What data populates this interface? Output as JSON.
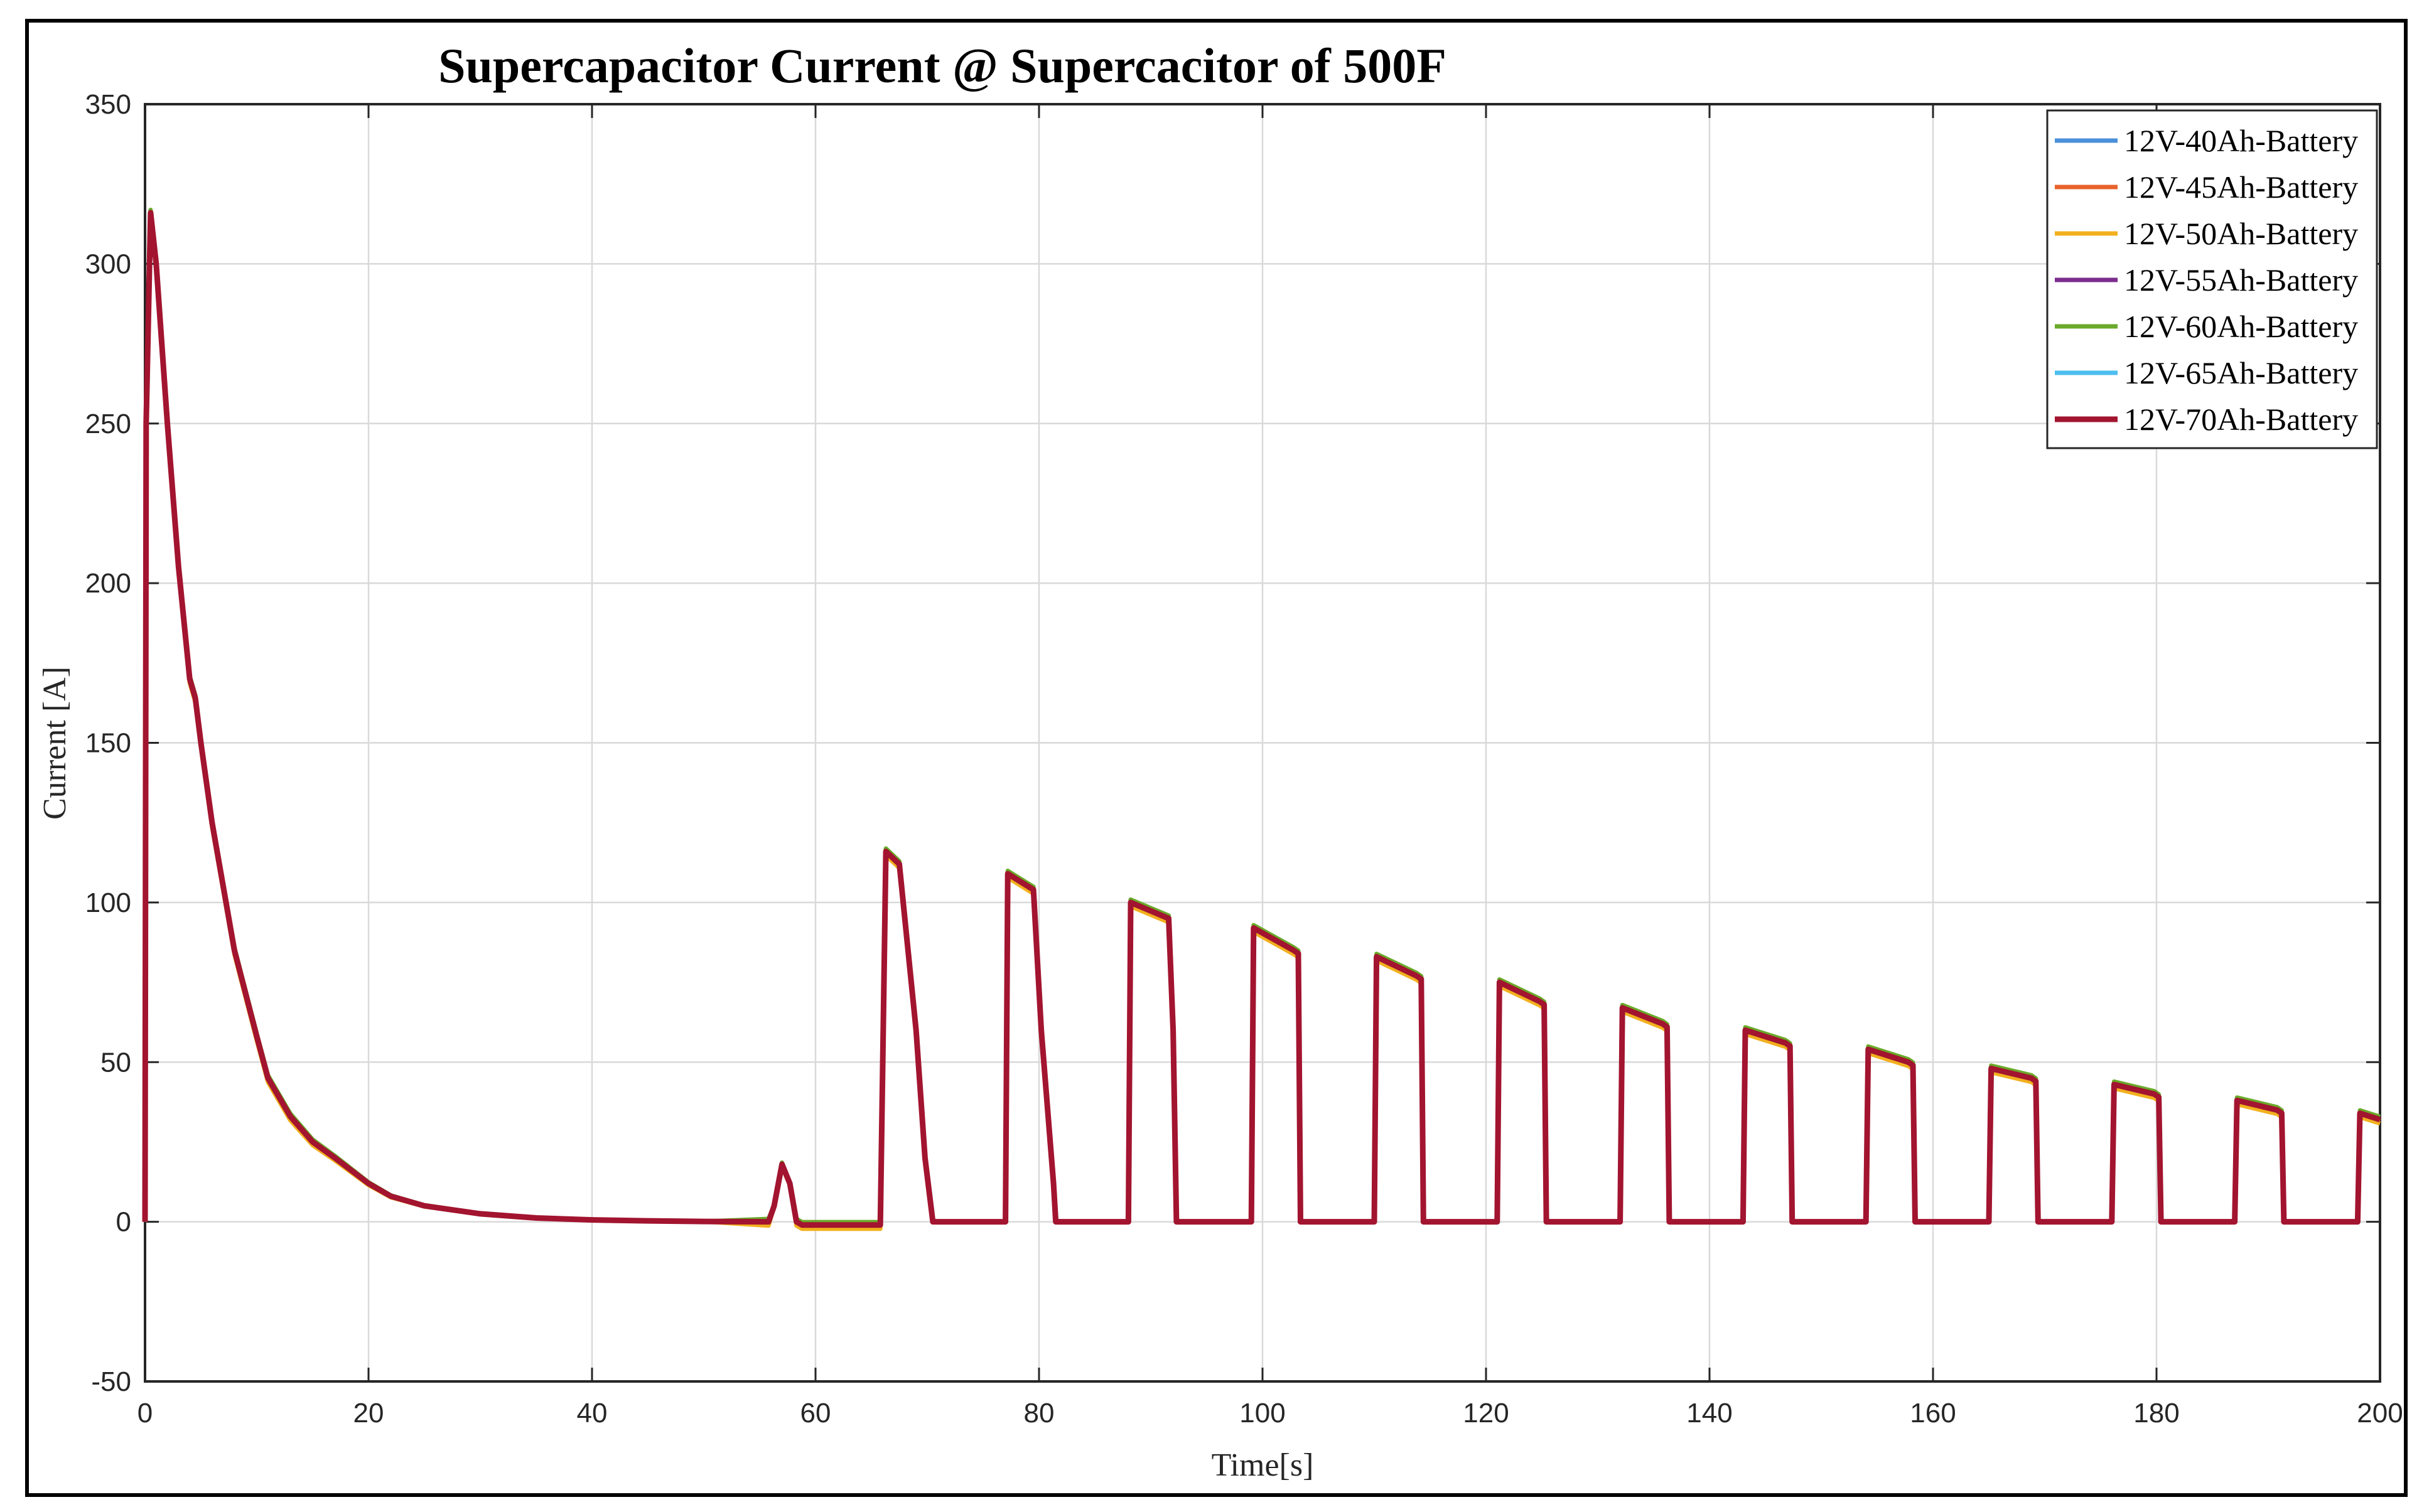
{
  "chart_data": {
    "type": "line",
    "title": "Supercapacitor Current @ Supercacitor of 500F",
    "xlabel": "Time[s]",
    "ylabel": "Current [A]",
    "xlim": [
      0,
      200
    ],
    "ylim": [
      -50,
      350
    ],
    "xticks": [
      0,
      20,
      40,
      60,
      80,
      100,
      120,
      140,
      160,
      180,
      200
    ],
    "yticks": [
      -50,
      0,
      50,
      100,
      150,
      200,
      250,
      300,
      350
    ],
    "grid": true,
    "legend_position": "top-right",
    "series": [
      {
        "name": "12V-40Ah-Battery",
        "color": "#4A90D9",
        "offset": 0.6
      },
      {
        "name": "12V-45Ah-Battery",
        "color": "#E8622A",
        "offset": -0.4
      },
      {
        "name": "12V-50Ah-Battery",
        "color": "#F2B01E",
        "offset": -1.2
      },
      {
        "name": "12V-55Ah-Battery",
        "color": "#7B2D8E",
        "offset": 0.3
      },
      {
        "name": "12V-60Ah-Battery",
        "color": "#6AAA2A",
        "offset": 0.9
      },
      {
        "name": "12V-65Ah-Battery",
        "color": "#4DBEEE",
        "offset": 0.1
      },
      {
        "name": "12V-70Ah-Battery",
        "color": "#A2142F",
        "offset": 0
      }
    ],
    "base_curve": {
      "x": [
        0,
        0.1,
        0.5,
        1,
        2,
        3,
        4,
        4.5,
        5,
        6,
        8,
        10,
        11,
        13,
        15,
        17,
        20,
        22,
        25,
        30,
        35,
        40,
        45,
        50,
        55.8,
        56.3,
        57,
        57.7,
        58.3,
        58.8,
        65.8,
        66.3,
        67.5,
        69,
        69.8,
        70.5,
        77,
        77.2,
        79.5,
        80.2,
        81.3,
        81.5,
        88,
        88.2,
        91.6,
        92,
        92.3,
        99,
        99.2,
        102.8,
        103.2,
        103.4,
        110,
        110.2,
        113.8,
        114.2,
        114.4,
        121,
        121.2,
        124.8,
        125.2,
        125.4,
        132,
        132.2,
        135.8,
        136.2,
        136.4,
        143,
        143.2,
        146.8,
        147.2,
        147.4,
        154,
        154.2,
        157.8,
        158.2,
        158.4,
        165,
        165.2,
        168.8,
        169.2,
        169.4,
        176,
        176.2,
        179.8,
        180.2,
        180.4,
        187,
        187.2,
        190.8,
        191.2,
        191.4,
        198,
        198.2,
        200
      ],
      "y": [
        0,
        250,
        316,
        300,
        250,
        205,
        170,
        164,
        150,
        125,
        85,
        58,
        45,
        33,
        25,
        20,
        12,
        8,
        5,
        2.5,
        1.2,
        0.6,
        0.3,
        0.1,
        0,
        5,
        18,
        12,
        0,
        -1,
        -1,
        116,
        112,
        60,
        20,
        0,
        0,
        109,
        104,
        60,
        12,
        0,
        0,
        100,
        95,
        60,
        0,
        0,
        92,
        85,
        84,
        0,
        0,
        83,
        77,
        76,
        0,
        0,
        75,
        69,
        68,
        0,
        0,
        67,
        62,
        61,
        0,
        0,
        60,
        56,
        55,
        0,
        0,
        54,
        50,
        49,
        0,
        0,
        48,
        45,
        44,
        0,
        0,
        43,
        40,
        39,
        0,
        0,
        38,
        35,
        34,
        0,
        0,
        34,
        32
      ]
    }
  }
}
